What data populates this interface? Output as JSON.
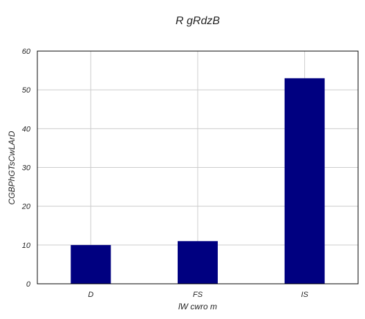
{
  "chart_data": {
    "type": "bar",
    "title": "R  gRdzB",
    "xlabel": "lW cwro m",
    "ylabel": "CGBPhGTsCwLArD",
    "categories": [
      "D",
      "FS",
      "IS"
    ],
    "values": [
      10,
      11,
      53
    ],
    "ylim": [
      0,
      60
    ],
    "yticks": [
      0,
      10,
      20,
      30,
      40,
      50,
      60
    ],
    "grid": true,
    "bar_color": "#000080",
    "grid_color": "#cccccc",
    "frame_color": "#000000"
  }
}
